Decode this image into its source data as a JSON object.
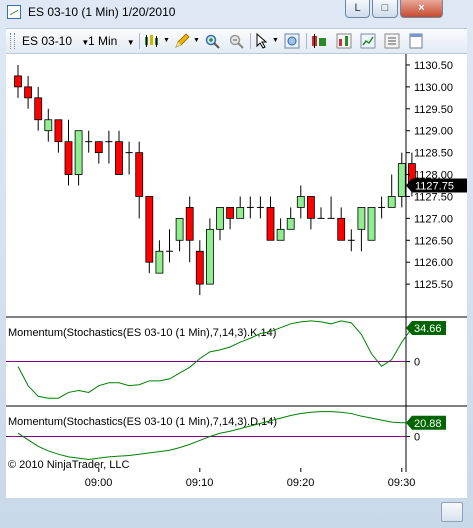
{
  "window": {
    "title": "ES 03-10 (1 Min)  1/20/2010",
    "minimize_label": "L",
    "restore_label": "□",
    "close_label": "×"
  },
  "toolbar": {
    "instrument": "ES 03-10",
    "interval": "1 Min",
    "icons": [
      "bar-type-icon",
      "drawing-pencil-icon",
      "zoom-in-icon",
      "zoom-out-icon",
      "cursor-icon",
      "find-icon",
      "instrument-icon",
      "indicator-icon",
      "strategy-icon",
      "chart-properties-icon",
      "data-box-icon"
    ]
  },
  "copyright": "© 2010 NinjaTrader, LLC",
  "colors": {
    "up": "#90ee90",
    "down": "#ff0000",
    "wick": "#000000",
    "momentum_line": "#008000",
    "zero_line": "#800080",
    "label_bg": "#006400"
  },
  "chart_data": [
    {
      "type": "candlestick",
      "title": "",
      "xlabel": "",
      "ylabel": "",
      "ylim": [
        1124.75,
        1130.75
      ],
      "yticks": [
        1125.5,
        1126.0,
        1126.5,
        1127.0,
        1127.5,
        1128.0,
        1128.5,
        1129.0,
        1129.5,
        1130.0,
        1130.5
      ],
      "ytick_labels": [
        "1125.50",
        "1126.00",
        "1126.50",
        "1127.00",
        "1127.50",
        "1128.00",
        "1128.50",
        "1129.00",
        "1129.50",
        "1130.00",
        "1130.50"
      ],
      "xticks": [
        8,
        18,
        28,
        38
      ],
      "xtick_labels": [
        "09:00",
        "09:10",
        "09:20",
        "09:30"
      ],
      "last_price": "1127.75",
      "grid": false,
      "candles": [
        {
          "o": 1130.25,
          "h": 1130.5,
          "l": 1129.75,
          "c": 1130.0
        },
        {
          "o": 1130.0,
          "h": 1130.25,
          "l": 1129.5,
          "c": 1129.75
        },
        {
          "o": 1129.75,
          "h": 1130.0,
          "l": 1129.0,
          "c": 1129.25
        },
        {
          "o": 1129.0,
          "h": 1129.5,
          "l": 1128.75,
          "c": 1129.25
        },
        {
          "o": 1129.25,
          "h": 1129.25,
          "l": 1128.5,
          "c": 1128.75
        },
        {
          "o": 1128.75,
          "h": 1129.25,
          "l": 1127.75,
          "c": 1128.0
        },
        {
          "o": 1128.0,
          "h": 1129.0,
          "l": 1127.75,
          "c": 1129.0
        },
        {
          "o": 1128.75,
          "h": 1129.0,
          "l": 1128.5,
          "c": 1128.75
        },
        {
          "o": 1128.75,
          "h": 1128.75,
          "l": 1128.25,
          "c": 1128.5
        },
        {
          "o": 1128.75,
          "h": 1129.0,
          "l": 1128.25,
          "c": 1128.75
        },
        {
          "o": 1128.75,
          "h": 1129.0,
          "l": 1128.0,
          "c": 1128.0
        },
        {
          "o": 1128.5,
          "h": 1128.75,
          "l": 1128.0,
          "c": 1128.5
        },
        {
          "o": 1128.5,
          "h": 1128.75,
          "l": 1127.0,
          "c": 1127.5
        },
        {
          "o": 1127.5,
          "h": 1127.5,
          "l": 1125.75,
          "c": 1126.0
        },
        {
          "o": 1125.75,
          "h": 1126.5,
          "l": 1125.75,
          "c": 1126.25
        },
        {
          "o": 1126.25,
          "h": 1126.75,
          "l": 1126.0,
          "c": 1126.25
        },
        {
          "o": 1126.5,
          "h": 1127.0,
          "l": 1126.25,
          "c": 1127.0
        },
        {
          "o": 1127.25,
          "h": 1127.5,
          "l": 1126.0,
          "c": 1126.5
        },
        {
          "o": 1126.25,
          "h": 1126.5,
          "l": 1125.25,
          "c": 1125.5
        },
        {
          "o": 1125.5,
          "h": 1127.0,
          "l": 1125.5,
          "c": 1126.75
        },
        {
          "o": 1126.75,
          "h": 1127.25,
          "l": 1126.5,
          "c": 1127.25
        },
        {
          "o": 1127.25,
          "h": 1127.25,
          "l": 1126.75,
          "c": 1127.0
        },
        {
          "o": 1127.0,
          "h": 1127.5,
          "l": 1127.0,
          "c": 1127.25
        },
        {
          "o": 1127.25,
          "h": 1127.5,
          "l": 1127.0,
          "c": 1127.25
        },
        {
          "o": 1127.25,
          "h": 1127.5,
          "l": 1127.0,
          "c": 1127.25
        },
        {
          "o": 1127.25,
          "h": 1127.5,
          "l": 1126.5,
          "c": 1126.5
        },
        {
          "o": 1126.5,
          "h": 1127.0,
          "l": 1126.5,
          "c": 1126.75
        },
        {
          "o": 1126.75,
          "h": 1127.25,
          "l": 1126.75,
          "c": 1127.0
        },
        {
          "o": 1127.25,
          "h": 1127.75,
          "l": 1127.0,
          "c": 1127.5
        },
        {
          "o": 1127.5,
          "h": 1127.5,
          "l": 1126.75,
          "c": 1127.0
        },
        {
          "o": 1127.0,
          "h": 1127.25,
          "l": 1127.0,
          "c": 1127.0
        },
        {
          "o": 1127.0,
          "h": 1127.5,
          "l": 1127.0,
          "c": 1127.0
        },
        {
          "o": 1127.0,
          "h": 1127.25,
          "l": 1126.5,
          "c": 1126.5
        },
        {
          "o": 1126.5,
          "h": 1126.75,
          "l": 1126.25,
          "c": 1126.5
        },
        {
          "o": 1126.75,
          "h": 1127.25,
          "l": 1126.25,
          "c": 1127.25
        },
        {
          "o": 1126.5,
          "h": 1127.25,
          "l": 1126.5,
          "c": 1127.25
        },
        {
          "o": 1127.25,
          "h": 1127.5,
          "l": 1127.0,
          "c": 1127.25
        },
        {
          "o": 1127.25,
          "h": 1128.0,
          "l": 1127.25,
          "c": 1127.5
        },
        {
          "o": 1127.5,
          "h": 1128.5,
          "l": 1127.25,
          "c": 1128.25
        },
        {
          "o": 1128.25,
          "h": 1128.5,
          "l": 1127.5,
          "c": 1127.75
        }
      ]
    },
    {
      "type": "line",
      "title": "Momentum(Stochastics(ES 03-10 (1 Min),7,14,3).K,14)",
      "last_value": "34.66",
      "zero_label": "0",
      "ylim": [
        -45,
        45
      ],
      "series": [
        {
          "values": [
            -5,
            -25,
            -36,
            -38,
            -38,
            -32,
            -30,
            -32,
            -25,
            -22,
            -22,
            -25,
            -24,
            -20,
            -20,
            -18,
            -12,
            -6,
            3,
            10,
            12,
            15,
            20,
            24,
            29,
            31,
            35,
            39,
            41,
            42,
            41,
            39,
            42,
            40,
            28,
            8,
            -5,
            2,
            20,
            34.66
          ]
        }
      ]
    },
    {
      "type": "line",
      "title": "Momentum(Stochastics(ES 03-10 (1 Min),7,14,3).D,14)",
      "last_value": "20.88",
      "zero_label": "0",
      "ylim": [
        -45,
        45
      ],
      "series": [
        {
          "values": [
            5,
            -5,
            -15,
            -22,
            -27,
            -31,
            -33,
            -35,
            -33,
            -31,
            -30,
            -29,
            -27,
            -25,
            -23,
            -21,
            -17,
            -12,
            -6,
            0,
            5,
            8,
            12,
            16,
            20,
            24,
            28,
            32,
            35,
            37,
            38,
            38,
            37,
            35,
            31,
            28,
            25,
            22,
            21,
            20.88
          ]
        }
      ]
    }
  ]
}
